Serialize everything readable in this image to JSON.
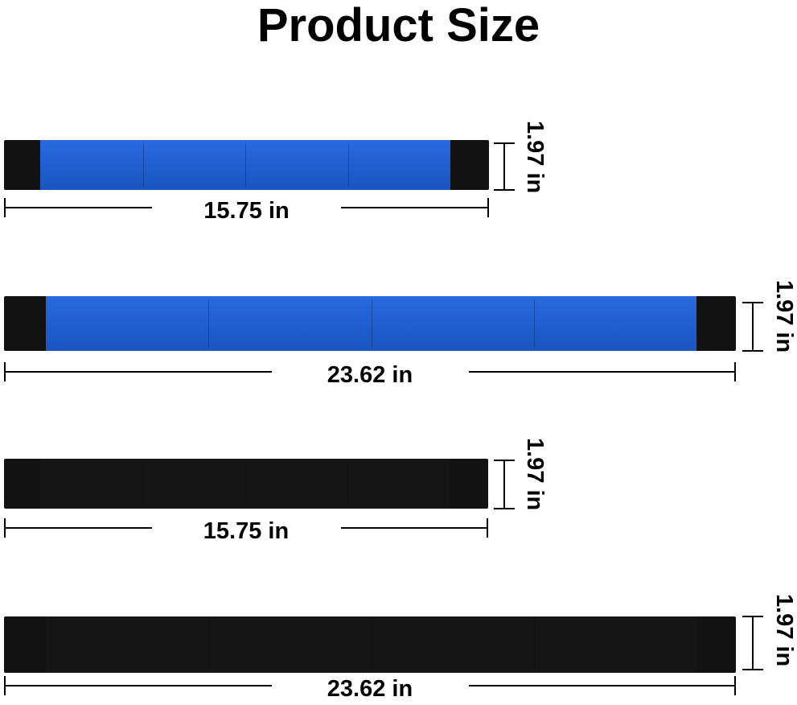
{
  "title": "Product Size",
  "colors": {
    "blue": "#1f5fd0",
    "black": "#121212"
  },
  "items": [
    {
      "color": "blue",
      "length": "15.75 in",
      "width": "1.97 in"
    },
    {
      "color": "blue",
      "length": "23.62 in",
      "width": "1.97 in"
    },
    {
      "color": "black",
      "length": "15.75 in",
      "width": "1.97 in"
    },
    {
      "color": "black",
      "length": "23.62 in",
      "width": "1.97 in"
    }
  ]
}
